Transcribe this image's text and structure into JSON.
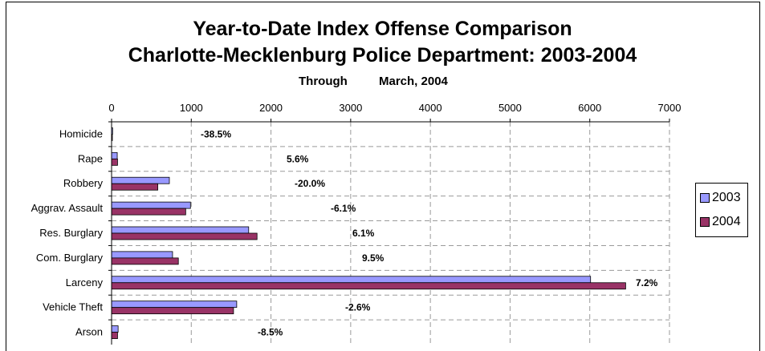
{
  "header": {
    "title_line1": "Year-to-Date Index Offense Comparison",
    "title_line2": "Charlotte-Mecklenburg Police Department: 2003-2004",
    "through_label": "Through",
    "through_date": "March, 2004"
  },
  "colors": {
    "s2003": "#9999ff",
    "s2004": "#993366",
    "grid": "#9a9a9a",
    "axis": "#000000"
  },
  "chart_data": {
    "type": "bar",
    "orientation": "horizontal",
    "categories": [
      "Homicide",
      "Rape",
      "Robbery",
      "Aggrav. Assault",
      "Res. Burglary",
      "Com. Burglary",
      "Larceny",
      "Vehicle Theft",
      "Arson"
    ],
    "series": [
      {
        "name": "2003",
        "values": [
          13,
          71,
          725,
          990,
          1720,
          765,
          6010,
          1570,
          82
        ]
      },
      {
        "name": "2004",
        "values": [
          8,
          75,
          580,
          930,
          1825,
          838,
          6450,
          1530,
          75
        ]
      }
    ],
    "percent_change_labels": [
      "-38.5%",
      "5.6%",
      "-20.0%",
      "-6.1%",
      "6.1%",
      "9.5%",
      "7.2%",
      "-2.6%",
      "-8.5%"
    ],
    "x_ticks": [
      "0",
      "1000",
      "2000",
      "3000",
      "4000",
      "5000",
      "6000",
      "7000"
    ],
    "xlim": [
      0,
      7000
    ],
    "x_axis_position": "top",
    "grid": true,
    "legend_position": "right"
  }
}
